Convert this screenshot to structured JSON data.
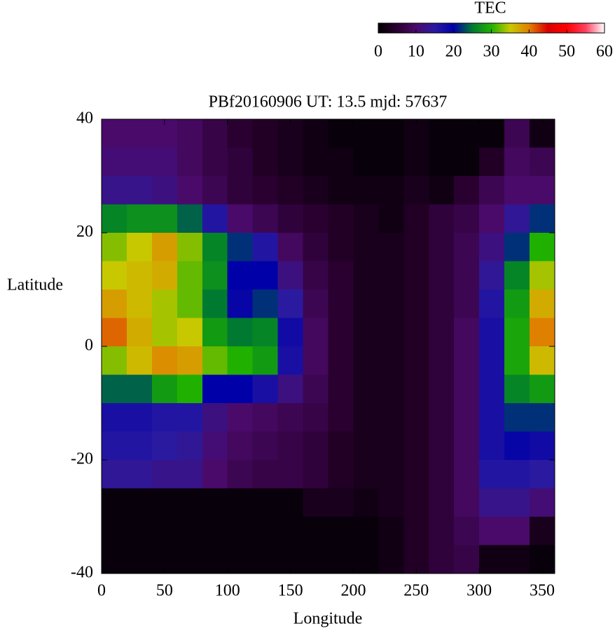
{
  "chart_data": {
    "type": "heatmap",
    "title": "PBf20160906  UT: 13.5  mjd: 57637",
    "x_label": "Longitude",
    "y_label": "Latitude",
    "colorbar_label": "TEC",
    "xlim": [
      0,
      360
    ],
    "ylim": [
      -40,
      40
    ],
    "zlim": [
      0,
      60
    ],
    "xticks": [
      0,
      50,
      100,
      150,
      200,
      250,
      300,
      350
    ],
    "yticks": [
      -40,
      -20,
      0,
      20,
      40
    ],
    "zticks": [
      0,
      10,
      20,
      30,
      40,
      50,
      60
    ],
    "colormap": [
      "#000000",
      "#2a0030",
      "#4a0a6a",
      "#2a1aa0",
      "#0000a8",
      "#007a30",
      "#20b000",
      "#c8c800",
      "#e08000",
      "#d80000",
      "#ff0000",
      "#ff4060",
      "#ffffff"
    ],
    "x": [
      10,
      30,
      50,
      70,
      90,
      110,
      130,
      150,
      170,
      190,
      210,
      230,
      250,
      270,
      290,
      310,
      330,
      350
    ],
    "y": [
      37.5,
      32.5,
      27.5,
      22.5,
      17.5,
      12.5,
      7.5,
      2.5,
      -2.5,
      -7.5,
      -12.5,
      -17.5,
      -22.5,
      -27.5,
      -32.5,
      -37.5
    ],
    "values": [
      [
        10,
        10,
        10,
        9,
        7,
        5,
        4,
        3,
        2,
        1,
        1,
        1,
        2,
        1,
        1,
        1,
        8,
        2
      ],
      [
        11,
        11,
        11,
        9,
        7,
        6,
        4,
        3,
        2,
        2,
        1,
        1,
        2,
        1,
        1,
        4,
        9,
        8
      ],
      [
        13,
        13,
        12,
        10,
        8,
        6,
        5,
        4,
        3,
        2,
        2,
        2,
        3,
        2,
        5,
        8,
        10,
        10
      ],
      [
        26,
        27,
        27,
        24,
        16,
        10,
        8,
        6,
        5,
        4,
        3,
        2,
        4,
        6,
        7,
        10,
        14,
        22
      ],
      [
        33,
        35,
        38,
        33,
        26,
        22,
        16,
        9,
        6,
        4,
        3,
        3,
        4,
        6,
        8,
        12,
        22,
        30
      ],
      [
        35,
        36,
        37,
        32,
        27,
        20,
        20,
        12,
        7,
        5,
        3,
        3,
        4,
        6,
        8,
        14,
        26,
        34
      ],
      [
        38,
        36,
        34,
        32,
        25,
        19,
        22,
        15,
        8,
        5,
        3,
        3,
        4,
        6,
        8,
        16,
        28,
        37
      ],
      [
        41,
        37,
        34,
        35,
        28,
        25,
        26,
        18,
        9,
        5,
        3,
        3,
        4,
        6,
        9,
        17,
        29,
        40
      ],
      [
        33,
        36,
        39,
        38,
        32,
        30,
        28,
        17,
        9,
        5,
        3,
        3,
        4,
        6,
        9,
        17,
        29,
        36
      ],
      [
        24,
        24,
        28,
        30,
        20,
        20,
        17,
        12,
        8,
        5,
        3,
        3,
        4,
        6,
        9,
        17,
        26,
        28
      ],
      [
        17,
        17,
        16,
        16,
        12,
        10,
        9,
        8,
        7,
        5,
        3,
        3,
        4,
        6,
        9,
        17,
        22,
        22
      ],
      [
        16,
        16,
        15,
        14,
        11,
        9,
        8,
        7,
        6,
        4,
        3,
        3,
        4,
        6,
        9,
        17,
        19,
        18
      ],
      [
        14,
        14,
        13,
        13,
        10,
        8,
        7,
        7,
        6,
        4,
        3,
        3,
        4,
        6,
        9,
        16,
        16,
        15
      ],
      [
        1,
        1,
        1,
        1,
        1,
        1,
        1,
        1,
        3,
        3,
        2,
        3,
        4,
        6,
        9,
        13,
        13,
        11
      ],
      [
        1,
        1,
        1,
        1,
        1,
        1,
        1,
        1,
        1,
        1,
        1,
        2,
        4,
        6,
        8,
        10,
        10,
        3
      ],
      [
        1,
        1,
        1,
        1,
        1,
        1,
        1,
        1,
        1,
        1,
        1,
        2,
        4,
        6,
        7,
        2,
        2,
        1
      ]
    ]
  }
}
